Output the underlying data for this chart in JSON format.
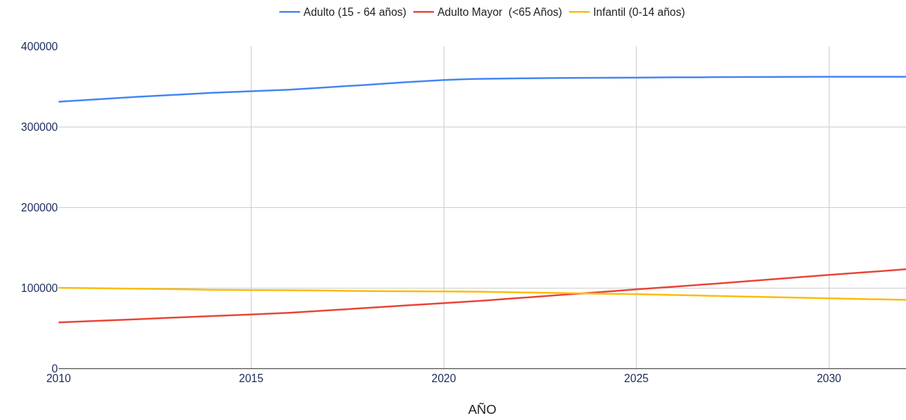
{
  "chart_data": {
    "type": "line",
    "xlabel": "AÑO",
    "x": [
      2010,
      2012,
      2014,
      2016,
      2018,
      2020,
      2021,
      2023,
      2025,
      2027,
      2030,
      2032
    ],
    "series": [
      {
        "name": "Adulto (15 - 64 años)",
        "color": "#4285f4",
        "values": [
          331000,
          337000,
          342000,
          346000,
          352000,
          358000,
          359500,
          360500,
          361000,
          361500,
          362000,
          362000
        ]
      },
      {
        "name": "Adulto Mayor  (<65 Años)",
        "color": "#ea4335",
        "values": [
          57000,
          61000,
          65000,
          69000,
          75000,
          81000,
          84000,
          91000,
          98000,
          105000,
          116000,
          123000
        ]
      },
      {
        "name": "Infantil (0-14 años)",
        "color": "#fbbc04",
        "values": [
          100000,
          99000,
          97500,
          97000,
          96000,
          95500,
          95000,
          93500,
          92000,
          90000,
          87000,
          85000
        ]
      }
    ],
    "xlim": [
      2010,
      2032
    ],
    "xticks": [
      2010,
      2015,
      2020,
      2025,
      2030
    ],
    "ylim": [
      0,
      400000
    ],
    "yticks": [
      0,
      100000,
      200000,
      300000,
      400000
    ],
    "grid": true,
    "legend": "top",
    "marker": "none",
    "line_style": "solid"
  }
}
